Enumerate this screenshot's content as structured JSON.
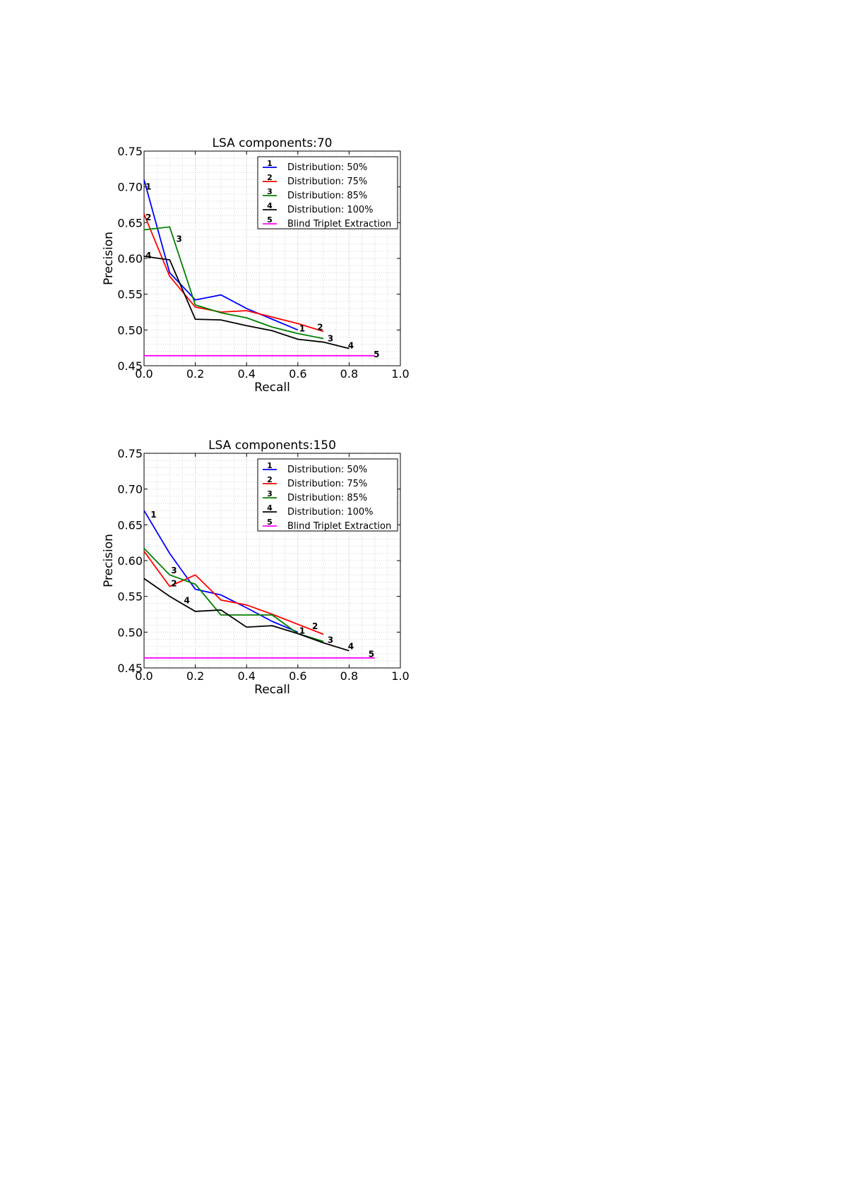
{
  "chart_data": [
    {
      "type": "line",
      "title": "LSA components:70",
      "xlabel": "Recall",
      "ylabel": "Precision",
      "xlim": [
        0.0,
        1.0
      ],
      "ylim": [
        0.45,
        0.75
      ],
      "xticks": [
        "0.0",
        "0.2",
        "0.4",
        "0.6",
        "0.8",
        "1.0"
      ],
      "yticks": [
        "0.45",
        "0.50",
        "0.55",
        "0.60",
        "0.65",
        "0.70",
        "0.75"
      ],
      "grid": true,
      "legend_position": "top-right",
      "series": [
        {
          "marker": "1",
          "name": "Distribution: 50%",
          "color": "#0000ff",
          "x": [
            0.0,
            0.1,
            0.2,
            0.3,
            0.4,
            0.5,
            0.6
          ],
          "y": [
            0.71,
            0.58,
            0.542,
            0.549,
            0.53,
            0.515,
            0.5
          ]
        },
        {
          "marker": "2",
          "name": "Distribution: 75%",
          "color": "#ff0000",
          "x": [
            0.0,
            0.1,
            0.2,
            0.3,
            0.4,
            0.5,
            0.6,
            0.7
          ],
          "y": [
            0.662,
            0.575,
            0.532,
            0.525,
            0.527,
            0.518,
            0.509,
            0.498
          ]
        },
        {
          "marker": "3",
          "name": "Distribution: 85%",
          "color": "#008000",
          "x": [
            0.0,
            0.1,
            0.2,
            0.3,
            0.4,
            0.5,
            0.6,
            0.7
          ],
          "y": [
            0.64,
            0.644,
            0.535,
            0.524,
            0.517,
            0.504,
            0.495,
            0.488
          ]
        },
        {
          "marker": "4",
          "name": "Distribution: 100%",
          "color": "#000000",
          "x": [
            0.0,
            0.1,
            0.2,
            0.3,
            0.4,
            0.5,
            0.6,
            0.7,
            0.8
          ],
          "y": [
            0.603,
            0.598,
            0.515,
            0.514,
            0.506,
            0.499,
            0.487,
            0.483,
            0.474
          ]
        },
        {
          "marker": "5",
          "name": "Blind Triplet Extraction",
          "color": "#ff00ff",
          "x": [
            0.0,
            0.9
          ],
          "y": [
            0.464,
            0.464
          ]
        }
      ]
    },
    {
      "type": "line",
      "title": "LSA components:150",
      "xlabel": "Recall",
      "ylabel": "Precision",
      "xlim": [
        0.0,
        1.0
      ],
      "ylim": [
        0.45,
        0.75
      ],
      "xticks": [
        "0.0",
        "0.2",
        "0.4",
        "0.6",
        "0.8",
        "1.0"
      ],
      "yticks": [
        "0.45",
        "0.50",
        "0.55",
        "0.60",
        "0.65",
        "0.70",
        "0.75"
      ],
      "grid": true,
      "legend_position": "top-right",
      "series": [
        {
          "marker": "1",
          "name": "Distribution: 50%",
          "color": "#0000ff",
          "x": [
            0.0,
            0.1,
            0.2,
            0.3,
            0.4,
            0.5,
            0.6
          ],
          "y": [
            0.67,
            0.61,
            0.56,
            0.552,
            0.534,
            0.515,
            0.5
          ]
        },
        {
          "marker": "2",
          "name": "Distribution: 75%",
          "color": "#ff0000",
          "x": [
            0.0,
            0.1,
            0.2,
            0.3,
            0.4,
            0.5,
            0.6,
            0.7
          ],
          "y": [
            0.613,
            0.564,
            0.58,
            0.545,
            0.538,
            0.525,
            0.511,
            0.497
          ]
        },
        {
          "marker": "3",
          "name": "Distribution: 85%",
          "color": "#008000",
          "x": [
            0.0,
            0.1,
            0.2,
            0.3,
            0.4,
            0.5,
            0.6,
            0.7
          ],
          "y": [
            0.617,
            0.58,
            0.567,
            0.524,
            0.524,
            0.524,
            0.498,
            0.487
          ]
        },
        {
          "marker": "4",
          "name": "Distribution: 100%",
          "color": "#000000",
          "x": [
            0.0,
            0.1,
            0.2,
            0.3,
            0.4,
            0.5,
            0.6,
            0.7,
            0.8
          ],
          "y": [
            0.575,
            0.55,
            0.529,
            0.531,
            0.507,
            0.509,
            0.498,
            0.485,
            0.474
          ]
        },
        {
          "marker": "5",
          "name": "Blind Triplet Extraction",
          "color": "#ff00ff",
          "x": [
            0.0,
            0.9
          ],
          "y": [
            0.464,
            0.464
          ]
        }
      ]
    }
  ]
}
